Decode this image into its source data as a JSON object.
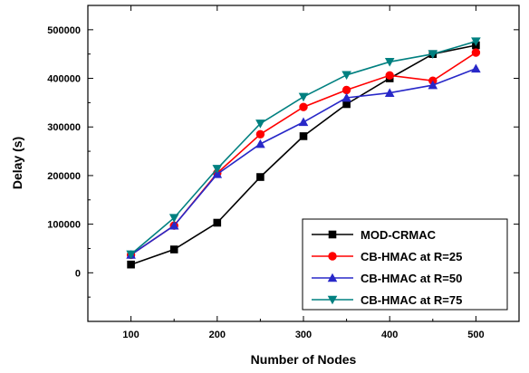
{
  "chart_data": {
    "type": "line",
    "title": "",
    "xlabel": "Number of Nodes",
    "ylabel": "Delay (s)",
    "x": [
      100,
      150,
      200,
      250,
      300,
      350,
      400,
      450,
      500
    ],
    "xlim": [
      50,
      550
    ],
    "ylim": [
      -100000,
      550000
    ],
    "xticks": [
      100,
      200,
      300,
      400,
      500
    ],
    "yticks": [
      0,
      100000,
      200000,
      300000,
      400000,
      500000
    ],
    "xtick_labels": [
      "100",
      "200",
      "300",
      "400",
      "500"
    ],
    "ytick_labels": [
      "0",
      "100000",
      "200000",
      "300000",
      "400000",
      "500000"
    ],
    "grid": false,
    "legend_position": "bottom-right",
    "series": [
      {
        "name": "MOD-CRMAC",
        "color": "#000000",
        "marker": "square",
        "values": [
          17000,
          48000,
          103000,
          197000,
          281000,
          347000,
          400000,
          450000,
          468000
        ]
      },
      {
        "name": "CB-HMAC at R=25",
        "color": "#ff0000",
        "marker": "circle",
        "values": [
          37000,
          97000,
          205000,
          285000,
          341000,
          376000,
          406000,
          395000,
          453000
        ]
      },
      {
        "name": "CB-HMAC at R=50",
        "color": "#2828c8",
        "marker": "triangle-up",
        "values": [
          37000,
          97000,
          203000,
          265000,
          310000,
          360000,
          370000,
          386000,
          420000
        ]
      },
      {
        "name": "CB-HMAC at R=75",
        "color": "#008080",
        "marker": "triangle-down",
        "values": [
          38000,
          113000,
          214000,
          307000,
          362000,
          407000,
          434000,
          450000,
          476000
        ]
      }
    ]
  }
}
